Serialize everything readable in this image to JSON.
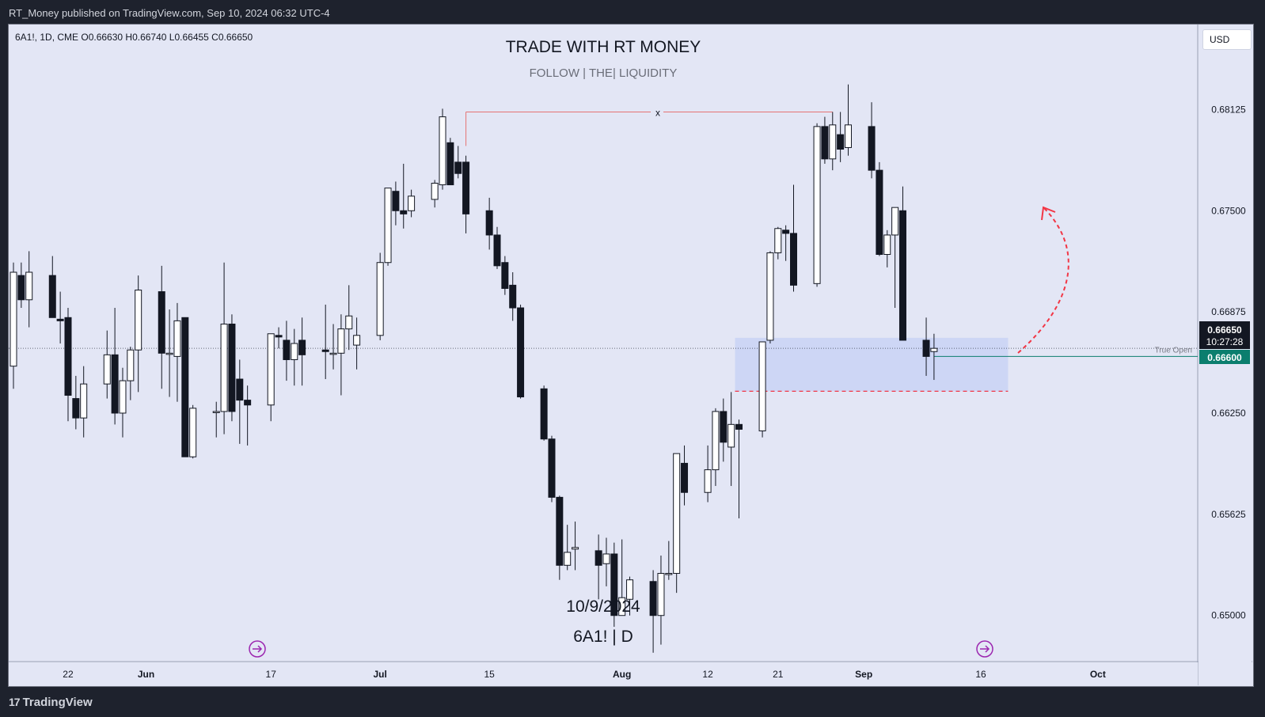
{
  "header": {
    "publisher_line": "RT_Money published on TradingView.com, Sep 10, 2024 06:32 UTC-4"
  },
  "legend": {
    "text": "6A1!, 1D, CME  O0.66630  H0.66740  L0.66455  C0.66650"
  },
  "currency": "USD",
  "watermark": {
    "title": "TRADE WITH RT MONEY",
    "subtitle": "FOLLOW   |   THE|   LIQUIDITY",
    "date": "10/9/2024",
    "symbol": "6A1!  |  D"
  },
  "annotations": {
    "x_marker": "x",
    "true_open": "True Open"
  },
  "price_tags": {
    "last": "0.66650",
    "countdown": "10:27:28",
    "level": "0.66600"
  },
  "footer": {
    "brand": "TradingView"
  },
  "colors": {
    "background": "#e3e6f5",
    "bull_body": "#ffffff",
    "bear_body": "#131722",
    "zone": "#c9d2f4",
    "red_annotation": "#f23645",
    "level_line": "#0b7e6e"
  },
  "icons": [
    "tradingview-logo-icon",
    "replay-arrow-icon"
  ],
  "chart_data": {
    "type": "candlestick",
    "symbol": "6A1!",
    "interval": "1D",
    "exchange": "CME",
    "ohlc_last": {
      "open": 0.6663,
      "high": 0.6674,
      "low": 0.66455,
      "close": 0.6665
    },
    "y_ticks": [
      0.68125,
      0.675,
      0.66875,
      0.6625,
      0.65625,
      0.65
    ],
    "y_tick_labels": [
      "0.68125",
      "0.67500",
      "0.66875",
      "0.66250",
      "0.65625",
      "0.65000"
    ],
    "ylim": [
      0.6472,
      0.6865
    ],
    "x_tick_labels": [
      "22",
      "Jun",
      "17",
      "Jul",
      "15",
      "Aug",
      "12",
      "21",
      "Sep",
      "16",
      "Oct"
    ],
    "x_tick_dates": [
      "2024-05-22",
      "2024-06-01",
      "2024-06-17",
      "2024-07-01",
      "2024-07-15",
      "2024-08-01",
      "2024-08-12",
      "2024-08-21",
      "2024-09-01",
      "2024-09-16",
      "2024-10-01"
    ],
    "candles": [
      [
        "2024-05-15",
        0.6654,
        0.6718,
        0.664,
        0.6712
      ],
      [
        "2024-05-16",
        0.671,
        0.6718,
        0.669,
        0.6695
      ],
      [
        "2024-05-17",
        0.6695,
        0.6725,
        0.6678,
        0.6712
      ],
      [
        "2024-05-20",
        0.671,
        0.6722,
        0.6685,
        0.6684
      ],
      [
        "2024-05-21",
        0.6683,
        0.67,
        0.6668,
        0.6682
      ],
      [
        "2024-05-22",
        0.6684,
        0.669,
        0.662,
        0.6636
      ],
      [
        "2024-05-23",
        0.6634,
        0.6648,
        0.6615,
        0.6622
      ],
      [
        "2024-05-24",
        0.6622,
        0.6654,
        0.661,
        0.6643
      ],
      [
        "2024-05-27",
        0.6643,
        0.6676,
        0.6634,
        0.6661
      ],
      [
        "2024-05-28",
        0.6661,
        0.669,
        0.6618,
        0.6625
      ],
      [
        "2024-05-29",
        0.6625,
        0.6653,
        0.661,
        0.6645
      ],
      [
        "2024-05-30",
        0.6645,
        0.6666,
        0.6633,
        0.6664
      ],
      [
        "2024-05-31",
        0.6664,
        0.671,
        0.6638,
        0.6701
      ],
      [
        "2024-06-03",
        0.67,
        0.6716,
        0.664,
        0.6662
      ],
      [
        "2024-06-04",
        0.6662,
        0.6689,
        0.6635,
        0.6662
      ],
      [
        "2024-06-05",
        0.666,
        0.6693,
        0.6632,
        0.6682
      ],
      [
        "2024-06-06",
        0.6684,
        0.6684,
        0.6598,
        0.6598
      ],
      [
        "2024-06-07",
        0.6598,
        0.663,
        0.6597,
        0.6628
      ],
      [
        "2024-06-10",
        0.6626,
        0.6632,
        0.661,
        0.6626
      ],
      [
        "2024-06-11",
        0.6626,
        0.6718,
        0.6612,
        0.668
      ],
      [
        "2024-06-12",
        0.668,
        0.6686,
        0.662,
        0.6626
      ],
      [
        "2024-06-13",
        0.6646,
        0.6658,
        0.6606,
        0.6633
      ],
      [
        "2024-06-14",
        0.6633,
        0.6642,
        0.6605,
        0.663
      ],
      [
        "2024-06-17",
        0.663,
        0.6674,
        0.662,
        0.6674
      ],
      [
        "2024-06-18",
        0.6673,
        0.6678,
        0.6665,
        0.6672
      ],
      [
        "2024-06-19",
        0.667,
        0.6682,
        0.6645,
        0.6658
      ],
      [
        "2024-06-20",
        0.6658,
        0.6677,
        0.6642,
        0.6668
      ],
      [
        "2024-06-21",
        0.667,
        0.6684,
        0.6642,
        0.6661
      ],
      [
        "2024-06-24",
        0.6664,
        0.6692,
        0.6646,
        0.6663
      ],
      [
        "2024-06-25",
        0.6662,
        0.668,
        0.6652,
        0.6662
      ],
      [
        "2024-06-26",
        0.6662,
        0.6686,
        0.6636,
        0.6677
      ],
      [
        "2024-06-27",
        0.6677,
        0.6704,
        0.6664,
        0.6685
      ],
      [
        "2024-06-28",
        0.6667,
        0.6684,
        0.6652,
        0.6673
      ],
      [
        "2024-07-01",
        0.6673,
        0.6724,
        0.667,
        0.6718
      ],
      [
        "2024-07-02",
        0.6718,
        0.6764,
        0.6716,
        0.6764
      ],
      [
        "2024-07-03",
        0.6762,
        0.6768,
        0.6741,
        0.675
      ],
      [
        "2024-07-04",
        0.675,
        0.6779,
        0.6739,
        0.6748
      ],
      [
        "2024-07-05",
        0.675,
        0.6763,
        0.6746,
        0.6759
      ],
      [
        "2024-07-08",
        0.6757,
        0.6769,
        0.6752,
        0.6767
      ],
      [
        "2024-07-09",
        0.6766,
        0.6813,
        0.6763,
        0.6808
      ],
      [
        "2024-07-10",
        0.6792,
        0.6795,
        0.6768,
        0.6766
      ],
      [
        "2024-07-11",
        0.678,
        0.679,
        0.677,
        0.6773
      ],
      [
        "2024-07-12",
        0.678,
        0.6784,
        0.6736,
        0.6748
      ],
      [
        "2024-07-15",
        0.675,
        0.6758,
        0.6726,
        0.6735
      ],
      [
        "2024-07-16",
        0.6735,
        0.674,
        0.6714,
        0.6716
      ],
      [
        "2024-07-17",
        0.6718,
        0.6722,
        0.6698,
        0.6702
      ],
      [
        "2024-07-18",
        0.6704,
        0.6712,
        0.6682,
        0.669
      ],
      [
        "2024-07-19",
        0.669,
        0.6692,
        0.6634,
        0.6635
      ],
      [
        "2024-07-22",
        0.664,
        0.6642,
        0.6608,
        0.6609
      ],
      [
        "2024-07-23",
        0.6609,
        0.6611,
        0.657,
        0.6573
      ],
      [
        "2024-07-24",
        0.6573,
        0.6574,
        0.6522,
        0.6531
      ],
      [
        "2024-07-25",
        0.6531,
        0.6556,
        0.6528,
        0.6539
      ],
      [
        "2024-07-26",
        0.6541,
        0.6558,
        0.6528,
        0.6542
      ],
      [
        "2024-07-29",
        0.654,
        0.655,
        0.651,
        0.6531
      ],
      [
        "2024-07-30",
        0.6532,
        0.6548,
        0.6518,
        0.6538
      ],
      [
        "2024-07-31",
        0.6538,
        0.6545,
        0.6493,
        0.65
      ],
      [
        "2024-08-01",
        0.65,
        0.6547,
        0.65,
        0.6511
      ],
      [
        "2024-08-02",
        0.651,
        0.6524,
        0.65,
        0.6522
      ],
      [
        "2024-08-05",
        0.6521,
        0.6528,
        0.6477,
        0.65
      ],
      [
        "2024-08-06",
        0.65,
        0.6537,
        0.6482,
        0.6526
      ],
      [
        "2024-08-07",
        0.6526,
        0.6546,
        0.6522,
        0.6526
      ],
      [
        "2024-08-08",
        0.6526,
        0.66,
        0.6514,
        0.66
      ],
      [
        "2024-08-09",
        0.6594,
        0.6605,
        0.6568,
        0.6576
      ],
      [
        "2024-08-12",
        0.6576,
        0.6605,
        0.657,
        0.659
      ],
      [
        "2024-08-13",
        0.659,
        0.6628,
        0.658,
        0.6626
      ],
      [
        "2024-08-14",
        0.6626,
        0.6634,
        0.6595,
        0.6607
      ],
      [
        "2024-08-15",
        0.6604,
        0.6638,
        0.658,
        0.6618
      ],
      [
        "2024-08-16",
        0.6618,
        0.6621,
        0.656,
        0.6615
      ],
      [
        "2024-08-19",
        0.6614,
        0.6669,
        0.661,
        0.6669
      ],
      [
        "2024-08-20",
        0.667,
        0.6725,
        0.6668,
        0.6724
      ],
      [
        "2024-08-21",
        0.6724,
        0.674,
        0.672,
        0.6739
      ],
      [
        "2024-08-22",
        0.6738,
        0.6741,
        0.6719,
        0.6736
      ],
      [
        "2024-08-23",
        0.6736,
        0.6766,
        0.67,
        0.6704
      ],
      [
        "2024-08-26",
        0.6705,
        0.6804,
        0.6703,
        0.6802
      ],
      [
        "2024-08-27",
        0.6802,
        0.6808,
        0.6779,
        0.6782
      ],
      [
        "2024-08-28",
        0.6782,
        0.6811,
        0.6775,
        0.6803
      ],
      [
        "2024-08-29",
        0.6797,
        0.6811,
        0.678,
        0.6788
      ],
      [
        "2024-08-30",
        0.6789,
        0.6828,
        0.6784,
        0.6803
      ],
      [
        "2024-09-02",
        0.6802,
        0.6817,
        0.677,
        0.6775
      ],
      [
        "2024-09-03",
        0.6775,
        0.678,
        0.6722,
        0.6723
      ],
      [
        "2024-09-04",
        0.6723,
        0.6738,
        0.6715,
        0.6735
      ],
      [
        "2024-09-05",
        0.6735,
        0.6752,
        0.669,
        0.6752
      ],
      [
        "2024-09-06",
        0.675,
        0.6765,
        0.667,
        0.667
      ],
      [
        "2024-09-09",
        0.667,
        0.6684,
        0.6648,
        0.666
      ],
      [
        "2024-09-10",
        0.6663,
        0.6674,
        0.66455,
        0.6665
      ]
    ],
    "zone": {
      "from": "2024-08-16",
      "to": "2024-09-20",
      "high": 0.66715,
      "low": 0.66385
    },
    "horizontal_levels": [
      {
        "label": "True Open",
        "price": 0.666
      },
      {
        "label": "",
        "price": 0.66385
      }
    ],
    "high_marker": {
      "from": "2024-07-12",
      "to": "2024-08-28",
      "price": 0.6811,
      "label": "x"
    }
  }
}
